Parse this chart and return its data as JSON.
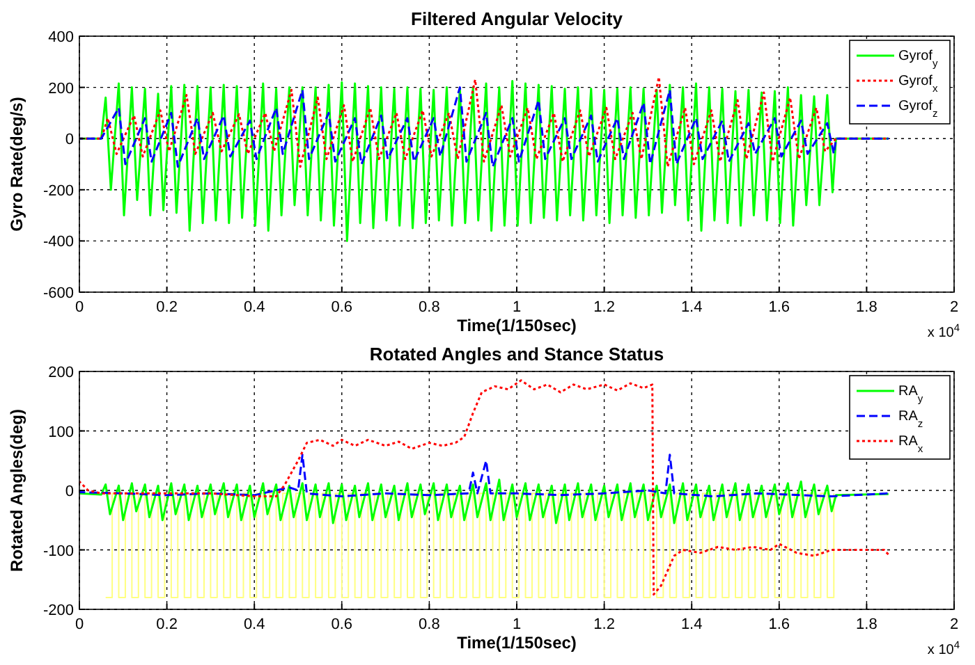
{
  "chart_data": [
    {
      "type": "line",
      "title": "Filtered Angular Velocity",
      "xlabel": "Time(1/150sec)",
      "ylabel": "Gyro Rate(deg/s)",
      "xlim": [
        0,
        2
      ],
      "xticks": [
        0,
        0.2,
        0.4,
        0.6,
        0.8,
        1,
        1.2,
        1.4,
        1.6,
        1.8,
        2
      ],
      "ylim": [
        -600,
        400
      ],
      "yticks": [
        -600,
        -400,
        -200,
        0,
        200,
        400
      ],
      "grid": true,
      "legend": "top right",
      "annotations": [
        "x 10$^{4}$"
      ],
      "series": [
        {
          "name": "Gyrof$_{y}$",
          "color": "#00ff00",
          "line_style": "solid",
          "x": [
            0,
            0.05,
            0.06,
            0.072,
            0.09,
            0.102,
            0.12,
            0.132,
            0.15,
            0.162,
            0.18,
            0.192,
            0.21,
            0.222,
            0.24,
            0.252,
            0.27,
            0.282,
            0.3,
            0.312,
            0.33,
            0.342,
            0.36,
            0.372,
            0.39,
            0.402,
            0.42,
            0.432,
            0.45,
            0.462,
            0.48,
            0.492,
            0.51,
            0.522,
            0.54,
            0.552,
            0.57,
            0.582,
            0.6,
            0.612,
            0.63,
            0.642,
            0.66,
            0.672,
            0.69,
            0.702,
            0.72,
            0.732,
            0.75,
            0.762,
            0.78,
            0.792,
            0.81,
            0.822,
            0.84,
            0.852,
            0.87,
            0.882,
            0.9,
            0.912,
            0.93,
            0.942,
            0.96,
            0.972,
            0.99,
            1.002,
            1.02,
            1.032,
            1.05,
            1.062,
            1.08,
            1.092,
            1.11,
            1.122,
            1.14,
            1.152,
            1.17,
            1.182,
            1.2,
            1.212,
            1.23,
            1.242,
            1.26,
            1.272,
            1.29,
            1.302,
            1.32,
            1.332,
            1.35,
            1.362,
            1.38,
            1.392,
            1.41,
            1.422,
            1.44,
            1.452,
            1.47,
            1.482,
            1.5,
            1.512,
            1.53,
            1.542,
            1.56,
            1.572,
            1.59,
            1.602,
            1.62,
            1.632,
            1.65,
            1.662,
            1.68,
            1.692,
            1.71,
            1.722,
            1.73,
            1.85
          ],
          "values": [
            0,
            0,
            160,
            -200,
            215,
            -300,
            200,
            -240,
            195,
            -300,
            175,
            -280,
            205,
            -290,
            210,
            -360,
            205,
            -330,
            200,
            -320,
            210,
            -330,
            205,
            -310,
            200,
            -340,
            215,
            -360,
            195,
            -300,
            200,
            -260,
            200,
            -300,
            200,
            -320,
            210,
            -340,
            220,
            -400,
            215,
            -330,
            205,
            -350,
            200,
            -320,
            195,
            -340,
            200,
            -350,
            195,
            -330,
            190,
            -320,
            200,
            -340,
            195,
            -330,
            200,
            -320,
            215,
            -360,
            200,
            -340,
            225,
            -340,
            215,
            -330,
            210,
            -310,
            205,
            -320,
            195,
            -300,
            200,
            -320,
            195,
            -300,
            190,
            -330,
            195,
            -300,
            200,
            -310,
            195,
            -300,
            190,
            -290,
            210,
            -260,
            200,
            -320,
            215,
            -360,
            200,
            -320,
            195,
            -330,
            185,
            -340,
            190,
            -300,
            180,
            -320,
            185,
            -330,
            200,
            -340,
            170,
            -260,
            165,
            -260,
            170,
            -210,
            0,
            0
          ]
        },
        {
          "name": "Gyrof$_{x}$",
          "color": "#ff0000",
          "line_style": "dotted",
          "x": [
            0,
            0.05,
            0.065,
            0.085,
            0.125,
            0.145,
            0.185,
            0.205,
            0.245,
            0.265,
            0.305,
            0.325,
            0.365,
            0.385,
            0.425,
            0.445,
            0.485,
            0.505,
            0.545,
            0.565,
            0.605,
            0.625,
            0.665,
            0.685,
            0.725,
            0.745,
            0.785,
            0.805,
            0.845,
            0.865,
            0.905,
            0.925,
            0.965,
            0.985,
            1.025,
            1.045,
            1.085,
            1.105,
            1.145,
            1.165,
            1.205,
            1.225,
            1.265,
            1.285,
            1.325,
            1.345,
            1.385,
            1.405,
            1.445,
            1.465,
            1.505,
            1.525,
            1.565,
            1.585,
            1.625,
            1.645,
            1.685,
            1.705,
            1.73,
            1.85
          ],
          "values": [
            0,
            0,
            80,
            -60,
            90,
            -70,
            110,
            -50,
            170,
            -60,
            100,
            -50,
            95,
            -60,
            100,
            -50,
            190,
            -110,
            160,
            -80,
            130,
            -90,
            120,
            -80,
            100,
            -80,
            110,
            -70,
            100,
            -80,
            230,
            -90,
            130,
            -70,
            120,
            -80,
            100,
            -90,
            110,
            -70,
            120,
            -80,
            100,
            -80,
            240,
            -110,
            120,
            -100,
            110,
            -90,
            150,
            -80,
            180,
            -90,
            160,
            -80,
            120,
            -50,
            0,
            0
          ]
        },
        {
          "name": "Gyrof$_{z}$",
          "color": "#0000ff",
          "line_style": "dashed",
          "x": [
            0,
            0.05,
            0.09,
            0.105,
            0.15,
            0.165,
            0.21,
            0.225,
            0.27,
            0.285,
            0.33,
            0.345,
            0.39,
            0.405,
            0.45,
            0.465,
            0.51,
            0.525,
            0.57,
            0.585,
            0.63,
            0.645,
            0.69,
            0.705,
            0.75,
            0.765,
            0.81,
            0.825,
            0.87,
            0.885,
            0.93,
            0.945,
            0.99,
            1.005,
            1.05,
            1.065,
            1.11,
            1.125,
            1.17,
            1.185,
            1.23,
            1.245,
            1.29,
            1.305,
            1.35,
            1.365,
            1.41,
            1.425,
            1.47,
            1.485,
            1.53,
            1.545,
            1.59,
            1.605,
            1.65,
            1.665,
            1.71,
            1.725,
            1.73,
            1.85
          ],
          "values": [
            0,
            0,
            120,
            -100,
            80,
            -90,
            100,
            -110,
            80,
            -80,
            90,
            -70,
            70,
            -80,
            120,
            -60,
            190,
            -80,
            100,
            -90,
            80,
            -100,
            90,
            -80,
            80,
            -90,
            80,
            -70,
            200,
            -90,
            100,
            -110,
            80,
            -90,
            150,
            -80,
            80,
            -80,
            90,
            -90,
            80,
            -80,
            140,
            -100,
            190,
            -100,
            80,
            -80,
            70,
            -90,
            60,
            -60,
            80,
            -70,
            70,
            -60,
            60,
            -60,
            0,
            0
          ]
        }
      ]
    },
    {
      "type": "line",
      "title": "Rotated Angles and Stance Status",
      "xlabel": "Time(1/150sec)",
      "ylabel": "Rotated Angles(deg)",
      "xlim": [
        0,
        2
      ],
      "xticks": [
        0,
        0.2,
        0.4,
        0.6,
        0.8,
        1,
        1.2,
        1.4,
        1.6,
        1.8,
        2
      ],
      "ylim": [
        -200,
        200
      ],
      "yticks": [
        -200,
        -100,
        0,
        100,
        200
      ],
      "grid": true,
      "legend": "top right",
      "annotations": [
        "x 10$^{4}$"
      ],
      "series": [
        {
          "type": "step",
          "color": "#ffff80",
          "line_style": "solid",
          "x": [
            0.06,
            0.075,
            0.09,
            0.105,
            0.12,
            0.135,
            0.15,
            0.165,
            0.18,
            0.195,
            0.21,
            0.225,
            0.24,
            0.255,
            0.27,
            0.285,
            0.3,
            0.315,
            0.33,
            0.345,
            0.36,
            0.375,
            0.39,
            0.405,
            0.42,
            0.435,
            0.45,
            0.465,
            0.48,
            0.495,
            0.51,
            0.525,
            0.54,
            0.555,
            0.57,
            0.585,
            0.6,
            0.615,
            0.63,
            0.645,
            0.66,
            0.675,
            0.69,
            0.705,
            0.72,
            0.735,
            0.75,
            0.765,
            0.78,
            0.795,
            0.81,
            0.825,
            0.84,
            0.855,
            0.87,
            0.885,
            0.9,
            0.915,
            0.93,
            0.945,
            0.96,
            0.975,
            0.99,
            1.005,
            1.02,
            1.035,
            1.05,
            1.065,
            1.08,
            1.095,
            1.11,
            1.125,
            1.14,
            1.155,
            1.17,
            1.185,
            1.2,
            1.215,
            1.23,
            1.245,
            1.26,
            1.275,
            1.29,
            1.305,
            1.32,
            1.335,
            1.35,
            1.365,
            1.38,
            1.395,
            1.41,
            1.425,
            1.44,
            1.455,
            1.47,
            1.485,
            1.5,
            1.515,
            1.53,
            1.545,
            1.56,
            1.575,
            1.59,
            1.605,
            1.62,
            1.635,
            1.65,
            1.665,
            1.68,
            1.695,
            1.71,
            1.725
          ],
          "values": [
            -180,
            -5,
            -180,
            -5,
            -180,
            -5,
            -180,
            -5,
            -180,
            -5,
            -180,
            -5,
            -180,
            -5,
            -180,
            -5,
            -180,
            -5,
            -180,
            -5,
            -180,
            -5,
            -180,
            -5,
            -180,
            -5,
            -180,
            -5,
            -180,
            -5,
            -180,
            -5,
            -180,
            -5,
            -180,
            -5,
            -180,
            -5,
            -180,
            -5,
            -180,
            -5,
            -180,
            -5,
            -180,
            -5,
            -180,
            -5,
            -180,
            -5,
            -180,
            -5,
            -180,
            -5,
            -180,
            -5,
            -180,
            -5,
            -180,
            -5,
            -180,
            -5,
            -180,
            -5,
            -180,
            -5,
            -180,
            -5,
            -180,
            -5,
            -180,
            -5,
            -180,
            -5,
            -180,
            -5,
            -180,
            -5,
            -180,
            -5,
            -180,
            -5,
            -180,
            -5,
            -180,
            -5,
            -180,
            -5,
            -180,
            -5,
            -180,
            -5,
            -180,
            -5,
            -180,
            -5,
            -180,
            -5,
            -180,
            -5,
            -180,
            -5,
            -180,
            -5,
            -180,
            -5,
            -180,
            -5,
            -180,
            -5,
            -180,
            -5
          ]
        },
        {
          "name": "RA$_{y}$",
          "color": "#00ff00",
          "line_style": "solid",
          "x": [
            0,
            0.05,
            0.06,
            0.07,
            0.09,
            0.1,
            0.12,
            0.13,
            0.15,
            0.16,
            0.18,
            0.19,
            0.21,
            0.22,
            0.24,
            0.25,
            0.27,
            0.28,
            0.3,
            0.31,
            0.33,
            0.34,
            0.36,
            0.37,
            0.39,
            0.4,
            0.42,
            0.43,
            0.45,
            0.46,
            0.48,
            0.49,
            0.51,
            0.52,
            0.54,
            0.55,
            0.57,
            0.58,
            0.6,
            0.61,
            0.63,
            0.64,
            0.66,
            0.67,
            0.69,
            0.7,
            0.72,
            0.73,
            0.75,
            0.76,
            0.78,
            0.79,
            0.81,
            0.82,
            0.84,
            0.85,
            0.87,
            0.88,
            0.9,
            0.91,
            0.93,
            0.94,
            0.96,
            0.97,
            0.99,
            1,
            1.02,
            1.03,
            1.05,
            1.06,
            1.08,
            1.09,
            1.11,
            1.12,
            1.14,
            1.15,
            1.17,
            1.18,
            1.2,
            1.21,
            1.23,
            1.24,
            1.26,
            1.27,
            1.29,
            1.3,
            1.32,
            1.33,
            1.35,
            1.36,
            1.38,
            1.39,
            1.41,
            1.42,
            1.44,
            1.45,
            1.47,
            1.48,
            1.5,
            1.51,
            1.53,
            1.54,
            1.56,
            1.57,
            1.59,
            1.6,
            1.62,
            1.63,
            1.65,
            1.66,
            1.68,
            1.69,
            1.71,
            1.72,
            1.73,
            1.85
          ],
          "values": [
            -5,
            -7,
            10,
            -40,
            8,
            -50,
            12,
            -35,
            10,
            -45,
            8,
            -50,
            12,
            -40,
            10,
            -50,
            8,
            -45,
            10,
            -40,
            12,
            -45,
            10,
            -50,
            8,
            -45,
            12,
            -40,
            10,
            -50,
            8,
            -45,
            12,
            -50,
            10,
            -45,
            12,
            -55,
            10,
            -50,
            8,
            -45,
            12,
            -50,
            10,
            -45,
            8,
            -50,
            12,
            -45,
            10,
            -40,
            12,
            -50,
            10,
            -45,
            8,
            -50,
            10,
            -45,
            12,
            -50,
            18,
            -50,
            10,
            -45,
            12,
            -50,
            10,
            -45,
            8,
            -55,
            10,
            -50,
            12,
            -45,
            10,
            -50,
            8,
            -45,
            10,
            -50,
            12,
            -45,
            10,
            -50,
            8,
            -45,
            10,
            -55,
            12,
            -50,
            10,
            -45,
            8,
            -50,
            10,
            -45,
            12,
            -50,
            10,
            -45,
            8,
            -45,
            10,
            -40,
            12,
            -45,
            15,
            -45,
            10,
            -40,
            8,
            -35,
            -8,
            -6
          ]
        },
        {
          "name": "RA$_{z}$",
          "color": "#0000ff",
          "line_style": "dashed",
          "x": [
            0,
            0.1,
            0.2,
            0.3,
            0.4,
            0.48,
            0.5,
            0.51,
            0.52,
            0.6,
            0.7,
            0.8,
            0.89,
            0.9,
            0.91,
            0.93,
            0.94,
            1,
            1.1,
            1.2,
            1.3,
            1.34,
            1.35,
            1.36,
            1.45,
            1.55,
            1.65,
            1.72,
            1.85
          ],
          "values": [
            -3,
            -5,
            -8,
            -5,
            -8,
            5,
            0,
            60,
            -5,
            -10,
            -5,
            -8,
            -5,
            30,
            -5,
            50,
            -5,
            -5,
            -8,
            -5,
            0,
            -5,
            60,
            -5,
            -10,
            -5,
            -8,
            -10,
            -5
          ]
        },
        {
          "name": "RA$_{x}$",
          "color": "#ff0000",
          "line_style": "dotted",
          "x": [
            0,
            0.02,
            0.05,
            0.1,
            0.2,
            0.3,
            0.4,
            0.45,
            0.47,
            0.5,
            0.52,
            0.55,
            0.58,
            0.6,
            0.63,
            0.66,
            0.7,
            0.73,
            0.76,
            0.8,
            0.83,
            0.86,
            0.88,
            0.9,
            0.92,
            0.95,
            0.98,
            1.01,
            1.04,
            1.07,
            1.1,
            1.13,
            1.16,
            1.2,
            1.23,
            1.26,
            1.29,
            1.31,
            1.313,
            1.33,
            1.36,
            1.38,
            1.42,
            1.46,
            1.5,
            1.54,
            1.58,
            1.6,
            1.64,
            1.68,
            1.72,
            1.78,
            1.84,
            1.85
          ],
          "values": [
            15,
            0,
            -5,
            -5,
            -5,
            -5,
            -10,
            -10,
            10,
            50,
            80,
            85,
            75,
            85,
            75,
            85,
            75,
            82,
            70,
            80,
            75,
            80,
            90,
            130,
            165,
            175,
            170,
            185,
            170,
            178,
            165,
            178,
            170,
            178,
            168,
            180,
            172,
            178,
            -175,
            -160,
            -110,
            -100,
            -105,
            -95,
            -100,
            -95,
            -100,
            -90,
            -105,
            -110,
            -100,
            -100,
            -100,
            -108
          ]
        }
      ]
    }
  ]
}
